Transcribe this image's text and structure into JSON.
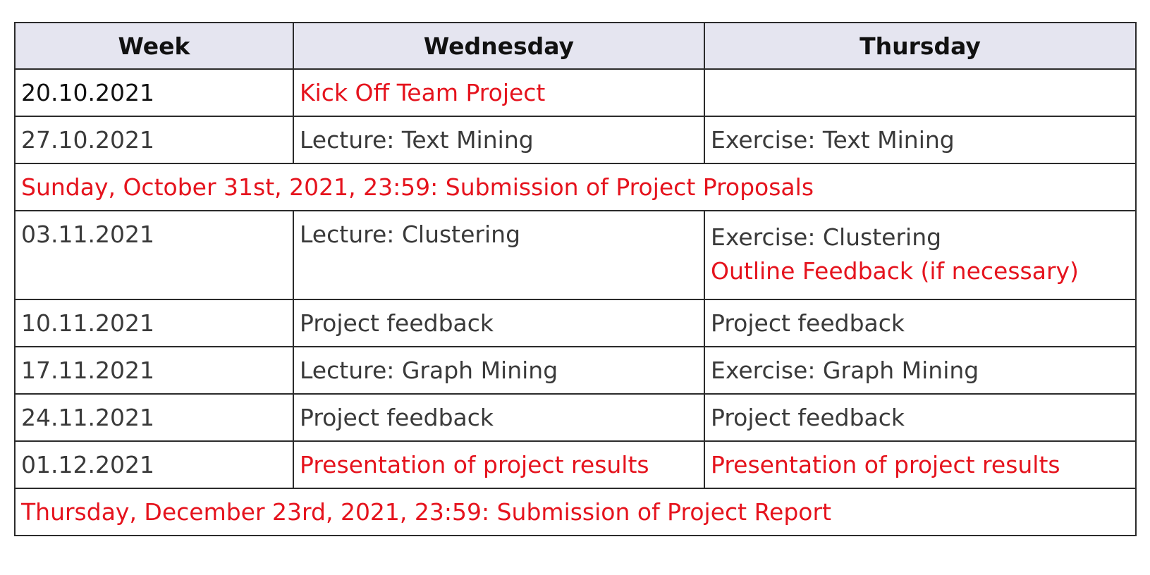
{
  "table": {
    "headers": {
      "week": "Week",
      "wednesday": "Wednesday",
      "thursday": "Thursday"
    },
    "rows": [
      {
        "week": "20.10.2021",
        "wednesday": "Kick Off Team Project",
        "thursday": ""
      },
      {
        "week": "27.10.2021",
        "wednesday": "Lecture: Text Mining",
        "thursday": "Exercise: Text Mining"
      },
      {
        "banner": "Sunday, October 31st, 2021, 23:59: Submission of Project Proposals"
      },
      {
        "week": "03.11.2021",
        "wednesday": "Lecture: Clustering",
        "thursday": "Exercise: Clustering",
        "thursday_note": "Outline Feedback (if necessary)"
      },
      {
        "week": "10.11.2021",
        "wednesday": "Project feedback",
        "thursday": "Project feedback"
      },
      {
        "week": "17.11.2021",
        "wednesday": "Lecture: Graph Mining",
        "thursday": "Exercise: Graph Mining"
      },
      {
        "week": "24.11.2021",
        "wednesday": "Project feedback",
        "thursday": "Project feedback"
      },
      {
        "week": "01.12.2021",
        "wednesday": "Presentation of project results",
        "thursday": "Presentation of project results"
      },
      {
        "banner": "Thursday, December 23rd, 2021, 23:59: Submission of Project Report"
      }
    ]
  },
  "colors": {
    "highlight": "#e5131d",
    "text": "#3a3a3a",
    "header_bg": "#e5e5f0",
    "border": "#2b2b2b"
  }
}
